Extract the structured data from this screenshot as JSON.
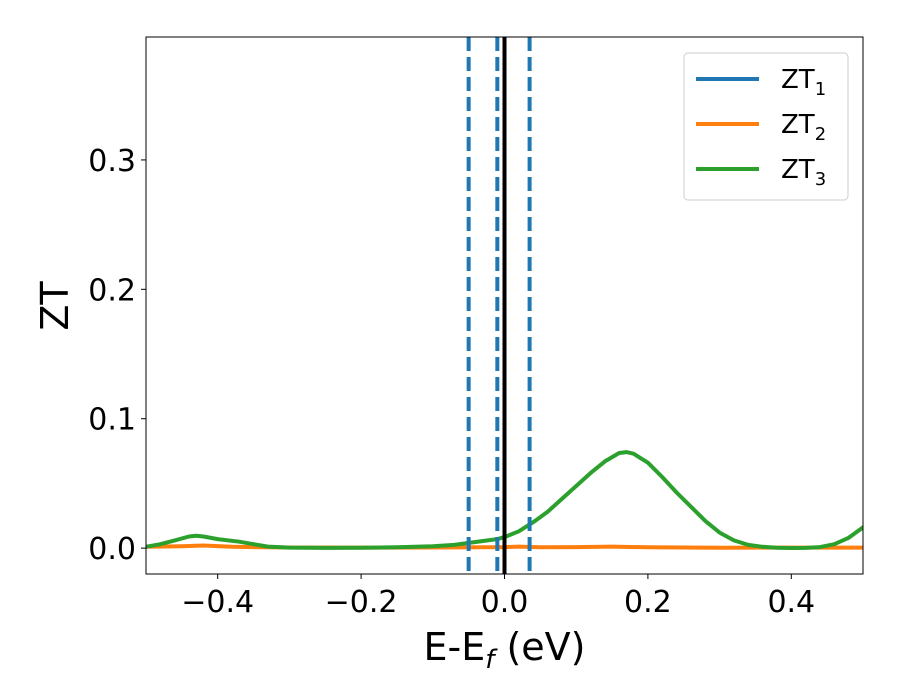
{
  "chart_data": {
    "type": "line",
    "xlabel_main": "E-E",
    "xlabel_sub": "f",
    "xlabel_unit": " (eV)",
    "ylabel": "ZT",
    "xlim": [
      -0.5,
      0.5
    ],
    "ylim": [
      -0.02,
      0.395
    ],
    "xticks": [
      -0.4,
      -0.2,
      0.0,
      0.2,
      0.4
    ],
    "xtick_labels": [
      "−0.4",
      "−0.2",
      "0.0",
      "0.2",
      "0.4"
    ],
    "yticks": [
      0.0,
      0.1,
      0.2,
      0.3
    ],
    "ytick_labels": [
      "0.0",
      "0.1",
      "0.2",
      "0.3"
    ],
    "legend_position": "top-right",
    "grid": false,
    "series": [
      {
        "name": "ZT",
        "name_sub": "1",
        "color": "#1f77b4",
        "x": [],
        "y": []
      },
      {
        "name": "ZT",
        "name_sub": "2",
        "color": "#ff7f0e",
        "x": [
          -0.5,
          -0.45,
          -0.42,
          -0.38,
          -0.3,
          -0.2,
          -0.1,
          0.0,
          0.02,
          0.05,
          0.1,
          0.15,
          0.2,
          0.3,
          0.4,
          0.5
        ],
        "y": [
          0.001,
          0.0015,
          0.002,
          0.001,
          0.0005,
          0.0004,
          0.0005,
          0.0008,
          0.0012,
          0.0006,
          0.0008,
          0.0012,
          0.0006,
          0.0003,
          0.0004,
          0.0004
        ]
      },
      {
        "name": "ZT",
        "name_sub": "3",
        "color": "#2ca02c",
        "x": [
          -0.5,
          -0.48,
          -0.46,
          -0.44,
          -0.43,
          -0.42,
          -0.4,
          -0.37,
          -0.35,
          -0.33,
          -0.3,
          -0.25,
          -0.2,
          -0.15,
          -0.1,
          -0.07,
          -0.05,
          -0.03,
          -0.01,
          0.0,
          0.02,
          0.04,
          0.06,
          0.08,
          0.1,
          0.12,
          0.14,
          0.16,
          0.17,
          0.18,
          0.2,
          0.22,
          0.24,
          0.26,
          0.28,
          0.3,
          0.32,
          0.34,
          0.36,
          0.38,
          0.4,
          0.42,
          0.44,
          0.46,
          0.48,
          0.5
        ],
        "y": [
          0.001,
          0.003,
          0.006,
          0.009,
          0.0095,
          0.009,
          0.007,
          0.005,
          0.003,
          0.0012,
          0.0004,
          0.0002,
          0.0003,
          0.0006,
          0.0015,
          0.0025,
          0.004,
          0.0055,
          0.007,
          0.0085,
          0.013,
          0.02,
          0.028,
          0.038,
          0.048,
          0.058,
          0.067,
          0.0735,
          0.0742,
          0.073,
          0.066,
          0.055,
          0.043,
          0.032,
          0.021,
          0.012,
          0.006,
          0.0025,
          0.001,
          0.0003,
          0.0001,
          0.0002,
          0.0008,
          0.003,
          0.008,
          0.016
        ]
      }
    ],
    "vlines": [
      {
        "x": -0.05,
        "style": "dashed",
        "color": "#1f77b4"
      },
      {
        "x": -0.01,
        "style": "dashed",
        "color": "#1f77b4"
      },
      {
        "x": 0.035,
        "style": "dashed",
        "color": "#1f77b4"
      },
      {
        "x": 0.0,
        "style": "solid",
        "color": "#000000"
      }
    ]
  }
}
